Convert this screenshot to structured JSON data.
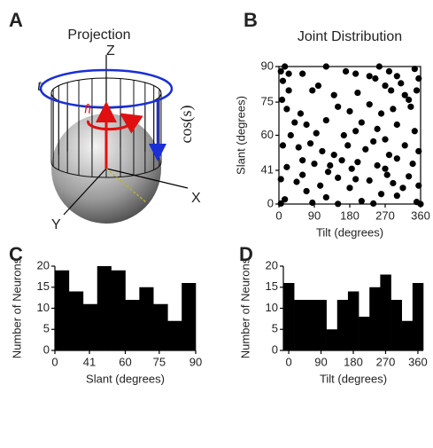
{
  "diagram": {
    "label": "A",
    "title": "Projection",
    "z": "Z",
    "x": "X",
    "y": "Y",
    "t": "t",
    "n": "n̂",
    "cos": "cos(s)"
  },
  "chart_data": [
    {
      "type": "scatter",
      "label": "B",
      "title": "Joint Distribution",
      "x_label": "Tilt (degrees)",
      "y_label": "Slant (degrees)",
      "x": [
        5,
        15,
        25,
        60,
        120,
        170,
        195,
        230,
        255,
        280,
        300,
        345,
        355,
        10,
        245,
        25,
        85,
        100,
        140,
        200,
        270,
        285,
        320,
        310,
        350,
        8,
        330,
        20,
        55,
        150,
        180,
        230,
        260,
        290,
        335,
        40,
        70,
        120,
        210,
        250,
        300,
        345,
        95,
        165,
        270,
        30,
        195,
        10,
        50,
        80,
        110,
        140,
        175,
        220,
        240,
        280,
        320,
        355,
        60,
        90,
        130,
        160,
        200,
        250,
        300,
        340,
        20,
        185,
        270,
        5,
        45,
        105,
        150,
        230,
        290,
        330,
        70,
        180,
        260,
        355,
        15,
        120,
        210,
        300,
        5,
        85,
        240,
        350,
        150,
        275,
        195,
        60,
        125,
        315,
        360
      ],
      "y": [
        88,
        90,
        87,
        87,
        90,
        88,
        87,
        86,
        90,
        88,
        86,
        89,
        85,
        84,
        85,
        80,
        80,
        82,
        78,
        79,
        82,
        80,
        78,
        83,
        80,
        76,
        76,
        72,
        70,
        73,
        71,
        74,
        70,
        72,
        73,
        66,
        65,
        67,
        66,
        63,
        65,
        62,
        61,
        60,
        58,
        60,
        62,
        55,
        54,
        56,
        52,
        50,
        55,
        53,
        57,
        50,
        55,
        52,
        47,
        45,
        44,
        47,
        46,
        44,
        48,
        45,
        43,
        42,
        42,
        35,
        33,
        30,
        36,
        34,
        32,
        37,
        25,
        28,
        22,
        30,
        15,
        18,
        12,
        20,
        5,
        8,
        5,
        10,
        3,
        38,
        35,
        38,
        40,
        28,
        0
      ],
      "xlim": [
        0,
        360
      ],
      "ylim": [
        0,
        90
      ],
      "xticks": [
        0,
        90,
        180,
        270,
        360
      ],
      "yticks": [
        0,
        41,
        60,
        75,
        90
      ],
      "yscale": "cosine",
      "color": "#000000"
    },
    {
      "type": "histogram",
      "label": "C",
      "x_label": "Slant (degrees)",
      "y_label": "Number of Neurons",
      "bins": [
        0,
        25.8,
        36.9,
        45.6,
        53.1,
        60,
        66.4,
        72.5,
        78.5,
        84.3,
        90
      ],
      "values": [
        19,
        14,
        11,
        20,
        19,
        12,
        15,
        11,
        7,
        16
      ],
      "xlim": [
        0,
        90
      ],
      "ylim": [
        0,
        20
      ],
      "xticks": [
        0,
        41,
        60,
        75,
        90
      ],
      "yticks": [
        0,
        5,
        10,
        15,
        20
      ],
      "xscale": "cosine",
      "color": "#000000"
    },
    {
      "type": "histogram",
      "label": "D",
      "x_label": "Tilt (degrees)",
      "y_label": "Number of Neurons",
      "bins": [
        -15,
        15,
        45,
        75,
        105,
        135,
        165,
        195,
        225,
        255,
        285,
        315,
        345,
        375
      ],
      "values": [
        16,
        12,
        12,
        12,
        5,
        12,
        14,
        8,
        15,
        18,
        12,
        7,
        16
      ],
      "xlim": [
        -15,
        375
      ],
      "ylim": [
        0,
        20
      ],
      "xticks": [
        0,
        90,
        180,
        270,
        360
      ],
      "yticks": [
        0,
        5,
        10,
        15,
        20
      ],
      "color": "#000000"
    }
  ]
}
